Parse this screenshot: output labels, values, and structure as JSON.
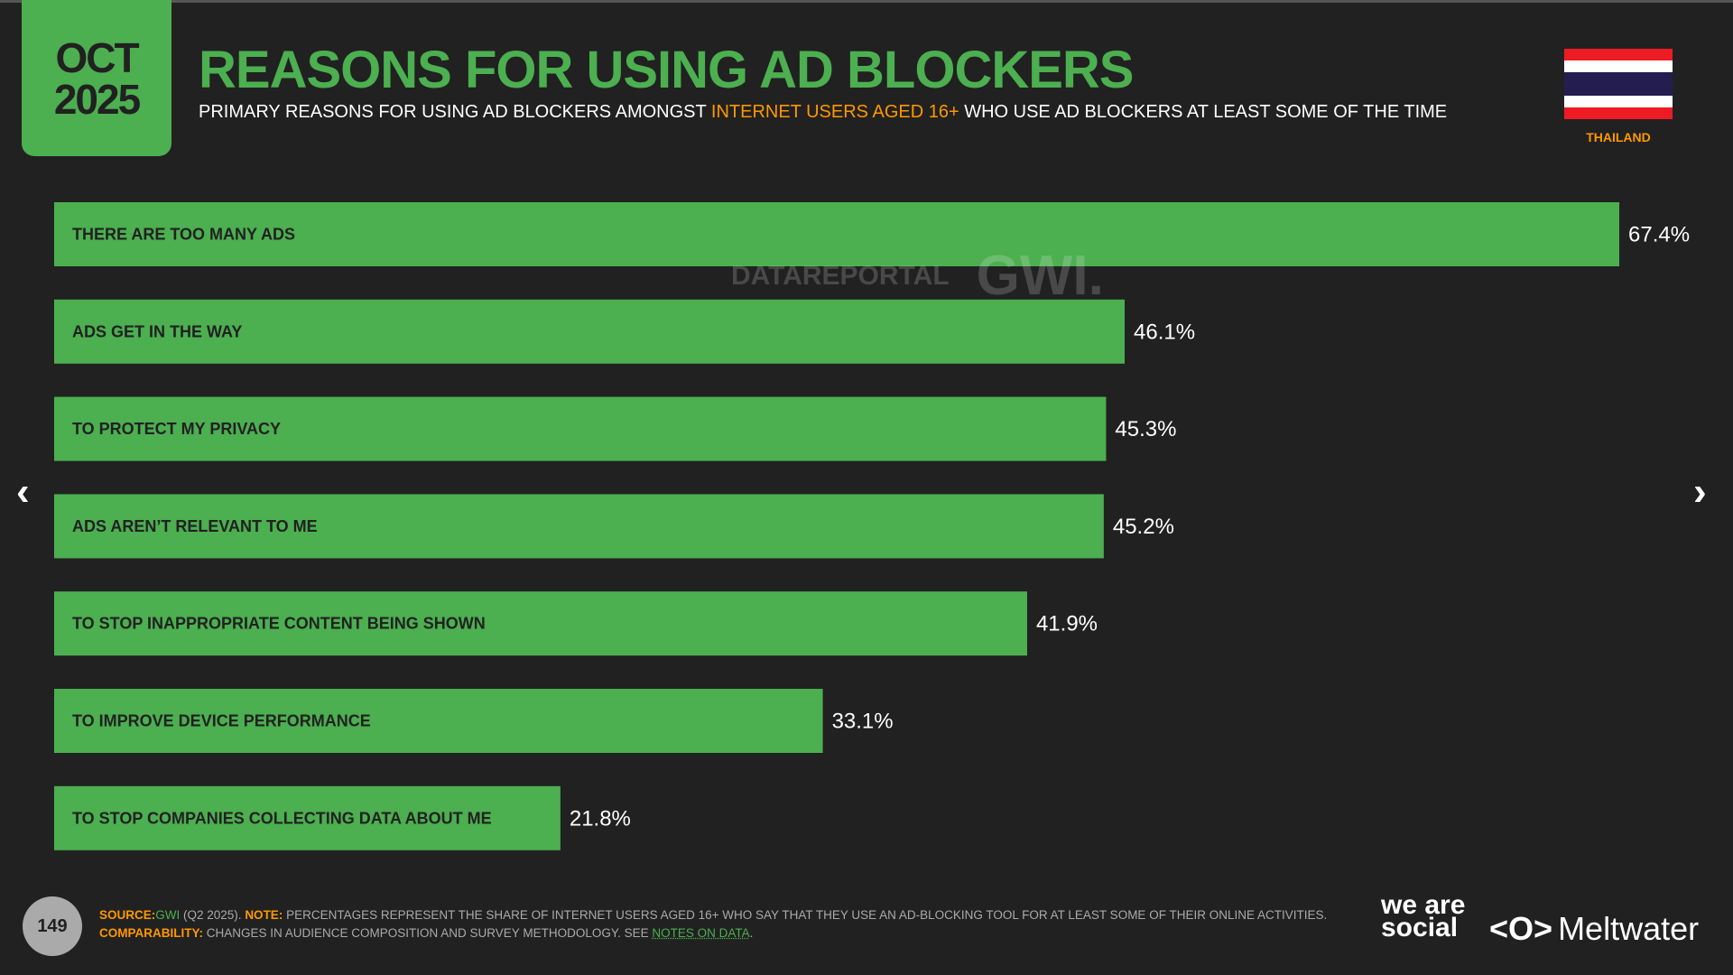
{
  "header": {
    "month": "OCT",
    "year": "2025",
    "title": "REASONS FOR USING AD BLOCKERS",
    "subtitle_pre": "PRIMARY REASONS FOR USING AD BLOCKERS AMONGST ",
    "subtitle_hl": "INTERNET USERS AGED 16+",
    "subtitle_post": " WHO USE AD BLOCKERS AT LEAST SOME OF THE TIME",
    "country": "THAILAND"
  },
  "colors": {
    "bar": "#4caf50",
    "background": "#212121",
    "accent": "#ff9800",
    "flag": [
      "#ed1c24",
      "#ffffff",
      "#241d4f",
      "#ffffff",
      "#ed1c24"
    ]
  },
  "watermark": {
    "left": "DATAREPORTAL",
    "right": "GWI."
  },
  "chart_data": {
    "type": "bar",
    "orientation": "horizontal",
    "title": "REASONS FOR USING AD BLOCKERS",
    "xlabel": "",
    "ylabel": "",
    "xlim": [
      0,
      67.4
    ],
    "categories": [
      "THERE ARE TOO MANY ADS",
      "ADS GET IN THE WAY",
      "TO PROTECT MY PRIVACY",
      "ADS AREN’T RELEVANT TO ME",
      "TO STOP INAPPROPRIATE CONTENT BEING SHOWN",
      "TO IMPROVE DEVICE PERFORMANCE",
      "TO STOP COMPANIES COLLECTING DATA ABOUT ME"
    ],
    "values": [
      67.4,
      46.1,
      45.3,
      45.2,
      41.9,
      33.1,
      21.8
    ],
    "value_labels": [
      "67.4%",
      "46.1%",
      "45.3%",
      "45.2%",
      "41.9%",
      "33.1%",
      "21.8%"
    ]
  },
  "footer": {
    "page": "149",
    "source_k": "SOURCE:",
    "source_v": "GWI",
    "source_rest": " (Q2 2025). ",
    "note_k": "NOTE:",
    "note_v": " PERCENTAGES REPRESENT THE SHARE OF INTERNET USERS AGED 16+ WHO SAY THAT THEY USE AN AD-BLOCKING TOOL FOR AT LEAST SOME OF THEIR ONLINE ACTIVITIES.",
    "comp_k": "COMPARABILITY:",
    "comp_v": " CHANGES IN AUDIENCE COMPOSITION AND SURVEY METHODOLOGY. SEE ",
    "comp_link": "NOTES ON DATA",
    "comp_end": ".",
    "brand1": "we are social",
    "brand2": "Meltwater",
    "brand2_icon": "<O>"
  },
  "nav": {
    "prev": "‹",
    "next": "›"
  }
}
